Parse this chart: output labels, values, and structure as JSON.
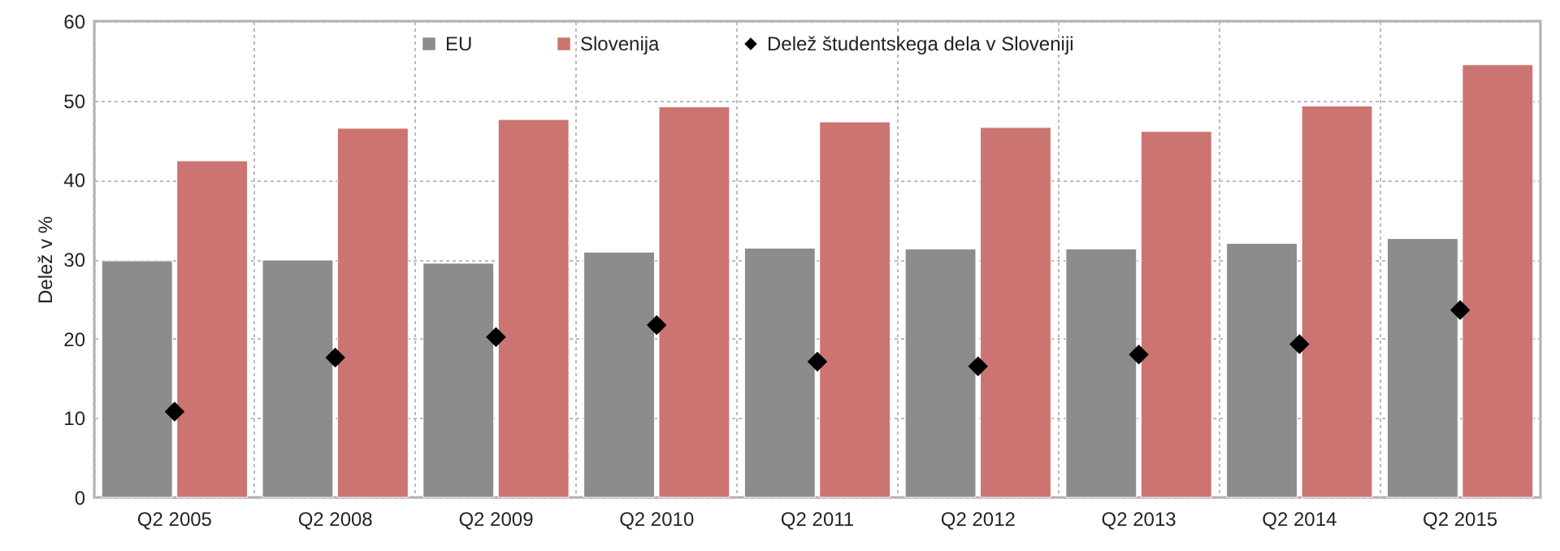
{
  "chart_data": {
    "type": "bar",
    "ylabel": "Delež v %",
    "categories": [
      "Q2 2005",
      "Q2 2008",
      "Q2 2009",
      "Q2 2010",
      "Q2 2011",
      "Q2 2012",
      "Q2 2013",
      "Q2 2014",
      "Q2 2015"
    ],
    "series": [
      {
        "name": "EU",
        "color": "#8c8c8c",
        "values": [
          29.8,
          29.9,
          29.5,
          30.9,
          31.4,
          31.3,
          31.3,
          32.0,
          32.6
        ]
      },
      {
        "name": "Slovenija",
        "color": "#cc7472",
        "values": [
          42.4,
          46.5,
          47.6,
          49.2,
          47.3,
          46.6,
          46.1,
          49.3,
          54.5
        ]
      },
      {
        "name": "Delež študentskega dela v Sloveniji",
        "type": "scatter",
        "marker": "diamond",
        "color": "#000000",
        "values": [
          10.8,
          17.6,
          20.2,
          21.7,
          17.1,
          16.5,
          18.0,
          19.3,
          23.6
        ]
      }
    ],
    "ylim": [
      0,
      60
    ],
    "yticks": [
      0,
      10,
      20,
      30,
      40,
      50,
      60
    ],
    "grid": true,
    "legend": "top"
  }
}
